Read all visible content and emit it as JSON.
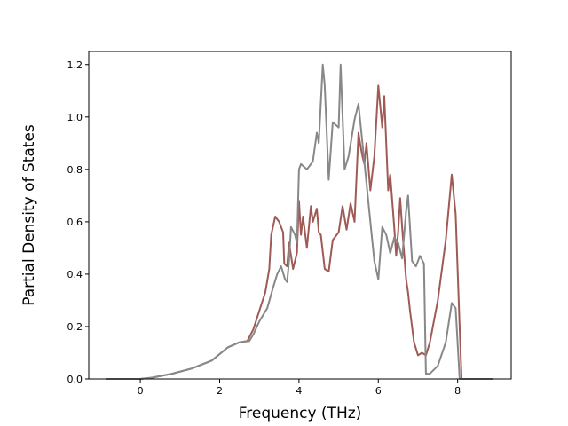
{
  "chart_data": {
    "type": "line",
    "title": "",
    "xlabel": "Frequency (THz)",
    "ylabel": "Partial Density of States",
    "xlim": [
      -1.3,
      9.35
    ],
    "ylim": [
      0,
      1.25
    ],
    "xticks": [
      0,
      2,
      4,
      6,
      8
    ],
    "yticks": [
      0.0,
      0.2,
      0.4,
      0.6,
      0.8,
      1.0,
      1.2
    ],
    "xtick_labels": [
      "0",
      "2",
      "4",
      "6",
      "8"
    ],
    "ytick_labels": [
      "0.0",
      "0.2",
      "0.4",
      "0.6",
      "0.8",
      "1.0",
      "1.2"
    ],
    "grid": false,
    "legend": "none",
    "series": [
      {
        "color": "#a05a55",
        "x": [
          -0.85,
          0.0,
          0.3,
          0.8,
          1.3,
          1.8,
          2.0,
          2.2,
          2.5,
          2.7,
          2.75,
          2.85,
          3.0,
          3.15,
          3.25,
          3.3,
          3.4,
          3.5,
          3.6,
          3.63,
          3.7,
          3.75,
          3.85,
          3.95,
          4.0,
          4.05,
          4.1,
          4.2,
          4.3,
          4.35,
          4.45,
          4.5,
          4.55,
          4.65,
          4.75,
          4.85,
          5.0,
          5.1,
          5.2,
          5.3,
          5.4,
          5.5,
          5.55,
          5.6,
          5.65,
          5.7,
          5.8,
          5.9,
          6.0,
          6.1,
          6.15,
          6.25,
          6.3,
          6.4,
          6.45,
          6.5,
          6.55,
          6.6,
          6.7,
          6.75,
          6.8,
          6.9,
          7.0,
          7.1,
          7.2,
          7.3,
          7.5,
          7.7,
          7.85,
          7.95,
          8.05,
          8.1,
          8.3,
          8.9
        ],
        "values": [
          0.0,
          0.0,
          0.005,
          0.02,
          0.04,
          0.07,
          0.095,
          0.12,
          0.14,
          0.145,
          0.16,
          0.19,
          0.26,
          0.33,
          0.42,
          0.55,
          0.62,
          0.6,
          0.56,
          0.44,
          0.43,
          0.52,
          0.42,
          0.48,
          0.68,
          0.55,
          0.62,
          0.5,
          0.66,
          0.6,
          0.65,
          0.56,
          0.55,
          0.42,
          0.41,
          0.53,
          0.56,
          0.66,
          0.57,
          0.67,
          0.6,
          0.94,
          0.89,
          0.85,
          0.82,
          0.9,
          0.72,
          0.85,
          1.12,
          0.96,
          1.08,
          0.72,
          0.78,
          0.58,
          0.47,
          0.56,
          0.69,
          0.58,
          0.38,
          0.33,
          0.26,
          0.14,
          0.09,
          0.1,
          0.09,
          0.14,
          0.3,
          0.53,
          0.78,
          0.63,
          0.2,
          0.0,
          0.0,
          0.0
        ]
      },
      {
        "color": "#888888",
        "x": [
          -0.85,
          0.0,
          0.3,
          0.8,
          1.3,
          1.8,
          2.0,
          2.2,
          2.5,
          2.75,
          2.85,
          3.0,
          3.2,
          3.35,
          3.45,
          3.55,
          3.65,
          3.7,
          3.75,
          3.8,
          3.9,
          3.95,
          4.0,
          4.05,
          4.2,
          4.35,
          4.45,
          4.5,
          4.6,
          4.65,
          4.75,
          4.85,
          5.0,
          5.05,
          5.15,
          5.25,
          5.4,
          5.5,
          5.6,
          5.8,
          5.9,
          6.0,
          6.1,
          6.2,
          6.3,
          6.4,
          6.5,
          6.6,
          6.7,
          6.75,
          6.85,
          6.95,
          7.05,
          7.15,
          7.2,
          7.3,
          7.5,
          7.7,
          7.85,
          7.95,
          8.05,
          8.3,
          8.9
        ],
        "values": [
          0.0,
          0.0,
          0.005,
          0.02,
          0.04,
          0.07,
          0.095,
          0.12,
          0.14,
          0.145,
          0.17,
          0.22,
          0.27,
          0.35,
          0.4,
          0.43,
          0.38,
          0.37,
          0.45,
          0.58,
          0.55,
          0.52,
          0.8,
          0.82,
          0.8,
          0.83,
          0.94,
          0.9,
          1.2,
          1.12,
          0.76,
          0.98,
          0.96,
          1.2,
          0.8,
          0.85,
          0.99,
          1.05,
          0.9,
          0.6,
          0.45,
          0.38,
          0.58,
          0.55,
          0.48,
          0.54,
          0.52,
          0.46,
          0.64,
          0.7,
          0.45,
          0.43,
          0.47,
          0.44,
          0.02,
          0.02,
          0.05,
          0.14,
          0.29,
          0.27,
          0.0,
          0.0,
          0.0
        ]
      }
    ]
  }
}
